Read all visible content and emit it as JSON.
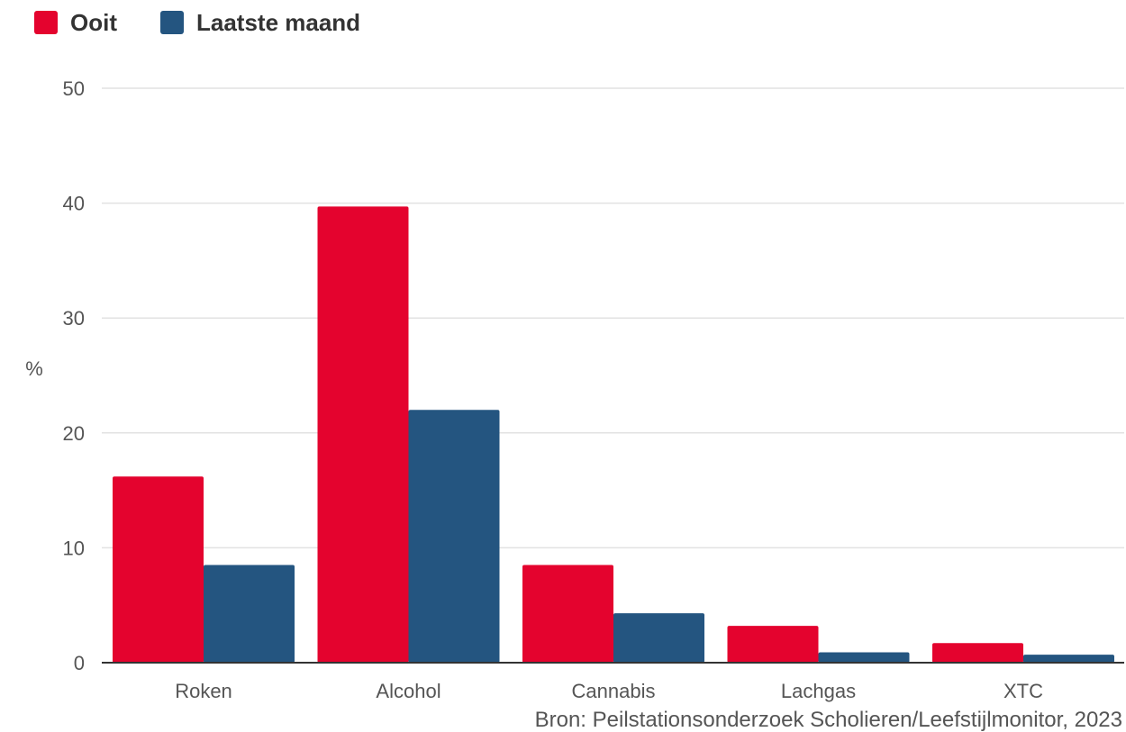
{
  "colors": {
    "ooit": "#e4032e",
    "laatste_maand": "#245580",
    "grid": "#e2e2e2",
    "axis": "#333333",
    "text": "#555555"
  },
  "legend": [
    {
      "label": "Ooit",
      "color": "#e4032e"
    },
    {
      "label": "Laatste maand",
      "color": "#245580"
    }
  ],
  "source": "Bron: Peilstationsonderzoek Scholieren/Leefstijlmonitor, 2023",
  "chart_data": {
    "type": "bar",
    "categories": [
      "Roken",
      "Alcohol",
      "Cannabis",
      "Lachgas",
      "XTC"
    ],
    "series": [
      {
        "name": "Ooit",
        "values": [
          16.2,
          39.7,
          8.5,
          3.2,
          1.7
        ]
      },
      {
        "name": "Laatste maand",
        "values": [
          8.5,
          22.0,
          4.3,
          0.9,
          0.7
        ]
      }
    ],
    "ylabel": "%",
    "ylim": [
      0,
      50
    ],
    "yticks": [
      0,
      10,
      20,
      30,
      40,
      50
    ],
    "grid": true,
    "legend_position": "top-left"
  }
}
